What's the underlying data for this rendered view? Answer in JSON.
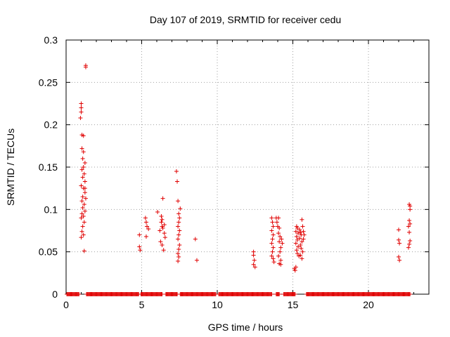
{
  "chart_data": {
    "type": "scatter",
    "title": "Day 107 of 2019, SRMTID for receiver cedu",
    "xlabel": "GPS time / hours",
    "ylabel": "SRMTID / TECUs",
    "xlim": [
      0,
      24
    ],
    "ylim": [
      0,
      0.3
    ],
    "grid": true,
    "marker": "+",
    "color": "#e00000",
    "x_ticks": [
      {
        "value": 0,
        "label": "0"
      },
      {
        "value": 5,
        "label": "5"
      },
      {
        "value": 10,
        "label": "10"
      },
      {
        "value": 15,
        "label": "15"
      },
      {
        "value": 20,
        "label": "20"
      }
    ],
    "y_ticks": [
      {
        "value": 0,
        "label": "0"
      },
      {
        "value": 0.05,
        "label": "0.05"
      },
      {
        "value": 0.1,
        "label": "0.1"
      },
      {
        "value": 0.15,
        "label": "0.15"
      },
      {
        "value": 0.2,
        "label": "0.2"
      },
      {
        "value": 0.25,
        "label": "0.25"
      },
      {
        "value": 0.3,
        "label": "0.3"
      }
    ],
    "series": [
      {
        "name": "SRMTID",
        "points": [
          [
            1.0,
            0.225
          ],
          [
            1.0,
            0.22
          ],
          [
            1.0,
            0.215
          ],
          [
            0.95,
            0.208
          ],
          [
            1.05,
            0.188
          ],
          [
            1.15,
            0.187
          ],
          [
            1.05,
            0.172
          ],
          [
            1.15,
            0.168
          ],
          [
            1.1,
            0.16
          ],
          [
            1.25,
            0.155
          ],
          [
            1.15,
            0.15
          ],
          [
            1.05,
            0.147
          ],
          [
            1.2,
            0.142
          ],
          [
            1.1,
            0.138
          ],
          [
            1.25,
            0.133
          ],
          [
            1.0,
            0.128
          ],
          [
            1.15,
            0.125
          ],
          [
            1.25,
            0.12
          ],
          [
            1.1,
            0.115
          ],
          [
            1.05,
            0.11
          ],
          [
            1.2,
            0.106
          ],
          [
            1.1,
            0.102
          ],
          [
            1.25,
            0.098
          ],
          [
            1.05,
            0.095
          ],
          [
            1.15,
            0.092
          ],
          [
            1.0,
            0.09
          ],
          [
            1.2,
            0.085
          ],
          [
            1.1,
            0.08
          ],
          [
            1.05,
            0.074
          ],
          [
            1.15,
            0.07
          ],
          [
            1.0,
            0.067
          ],
          [
            1.2,
            0.051
          ],
          [
            1.3,
            0.27
          ],
          [
            1.3,
            0.268
          ],
          [
            1.25,
            0.125
          ],
          [
            1.3,
            0.113
          ],
          [
            4.85,
            0.07
          ],
          [
            4.85,
            0.056
          ],
          [
            4.9,
            0.052
          ],
          [
            5.25,
            0.09
          ],
          [
            5.3,
            0.085
          ],
          [
            5.35,
            0.08
          ],
          [
            5.45,
            0.077
          ],
          [
            5.3,
            0.068
          ],
          [
            6.05,
            0.097
          ],
          [
            6.3,
            0.092
          ],
          [
            6.35,
            0.088
          ],
          [
            6.4,
            0.113
          ],
          [
            6.3,
            0.085
          ],
          [
            6.35,
            0.08
          ],
          [
            6.4,
            0.078
          ],
          [
            6.2,
            0.075
          ],
          [
            6.5,
            0.072
          ],
          [
            6.55,
            0.067
          ],
          [
            6.25,
            0.062
          ],
          [
            6.35,
            0.058
          ],
          [
            6.45,
            0.052
          ],
          [
            6.5,
            0.082
          ],
          [
            7.3,
            0.145
          ],
          [
            7.35,
            0.133
          ],
          [
            7.4,
            0.11
          ],
          [
            7.55,
            0.101
          ],
          [
            7.45,
            0.095
          ],
          [
            7.5,
            0.09
          ],
          [
            7.45,
            0.085
          ],
          [
            7.4,
            0.08
          ],
          [
            7.5,
            0.075
          ],
          [
            7.45,
            0.07
          ],
          [
            7.4,
            0.065
          ],
          [
            7.5,
            0.058
          ],
          [
            7.45,
            0.053
          ],
          [
            7.4,
            0.048
          ],
          [
            7.45,
            0.044
          ],
          [
            7.4,
            0.039
          ],
          [
            8.55,
            0.065
          ],
          [
            8.65,
            0.04
          ],
          [
            12.4,
            0.05
          ],
          [
            12.4,
            0.046
          ],
          [
            12.45,
            0.04
          ],
          [
            12.4,
            0.035
          ],
          [
            12.5,
            0.032
          ],
          [
            13.6,
            0.09
          ],
          [
            13.65,
            0.085
          ],
          [
            13.7,
            0.08
          ],
          [
            13.6,
            0.075
          ],
          [
            13.7,
            0.07
          ],
          [
            13.65,
            0.065
          ],
          [
            13.6,
            0.06
          ],
          [
            13.7,
            0.055
          ],
          [
            13.65,
            0.05
          ],
          [
            13.6,
            0.045
          ],
          [
            13.7,
            0.042
          ],
          [
            13.75,
            0.038
          ],
          [
            13.9,
            0.09
          ],
          [
            13.95,
            0.085
          ],
          [
            14.0,
            0.08
          ],
          [
            14.05,
            0.09
          ],
          [
            14.1,
            0.078
          ],
          [
            14.05,
            0.072
          ],
          [
            14.15,
            0.068
          ],
          [
            14.1,
            0.062
          ],
          [
            14.2,
            0.055
          ],
          [
            14.15,
            0.05
          ],
          [
            14.05,
            0.045
          ],
          [
            14.2,
            0.04
          ],
          [
            14.1,
            0.036
          ],
          [
            14.25,
            0.065
          ],
          [
            14.3,
            0.06
          ],
          [
            14.2,
            0.035
          ],
          [
            15.1,
            0.03
          ],
          [
            15.15,
            0.028
          ],
          [
            15.2,
            0.032
          ],
          [
            15.25,
            0.08
          ],
          [
            15.3,
            0.078
          ],
          [
            15.2,
            0.074
          ],
          [
            15.35,
            0.072
          ],
          [
            15.25,
            0.068
          ],
          [
            15.3,
            0.064
          ],
          [
            15.2,
            0.06
          ],
          [
            15.35,
            0.056
          ],
          [
            15.25,
            0.052
          ],
          [
            15.3,
            0.048
          ],
          [
            15.4,
            0.045
          ],
          [
            15.45,
            0.076
          ],
          [
            15.5,
            0.073
          ],
          [
            15.55,
            0.07
          ],
          [
            15.45,
            0.066
          ],
          [
            15.6,
            0.062
          ],
          [
            15.5,
            0.058
          ],
          [
            15.55,
            0.054
          ],
          [
            15.65,
            0.05
          ],
          [
            15.5,
            0.046
          ],
          [
            15.6,
            0.088
          ],
          [
            15.65,
            0.08
          ],
          [
            15.7,
            0.074
          ],
          [
            15.75,
            0.07
          ],
          [
            15.7,
            0.065
          ],
          [
            15.6,
            0.042
          ],
          [
            22.0,
            0.076
          ],
          [
            22.0,
            0.064
          ],
          [
            22.05,
            0.06
          ],
          [
            22.0,
            0.044
          ],
          [
            22.05,
            0.04
          ],
          [
            22.7,
            0.106
          ],
          [
            22.75,
            0.104
          ],
          [
            22.75,
            0.1
          ],
          [
            22.7,
            0.087
          ],
          [
            22.75,
            0.083
          ],
          [
            22.65,
            0.08
          ],
          [
            22.7,
            0.073
          ],
          [
            22.75,
            0.063
          ],
          [
            22.7,
            0.059
          ],
          [
            22.65,
            0.055
          ]
        ],
        "zero_segments": [
          [
            0.05,
            0.85
          ],
          [
            1.35,
            4.8
          ],
          [
            4.95,
            6.35
          ],
          [
            6.6,
            7.35
          ],
          [
            7.55,
            9.9
          ],
          [
            10.1,
            13.6
          ],
          [
            13.9,
            14.1
          ],
          [
            14.4,
            15.15
          ],
          [
            15.9,
            22.75
          ]
        ]
      }
    ]
  }
}
